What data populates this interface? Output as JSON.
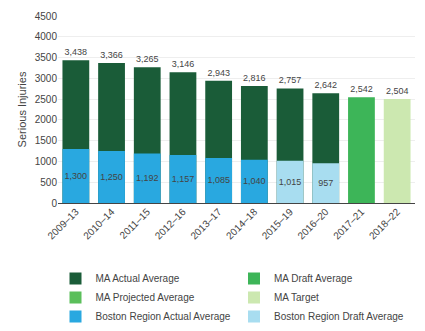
{
  "chart_data": {
    "type": "bar",
    "categories": [
      "2009–13",
      "2010–14",
      "2011–15",
      "2012–16",
      "2013–17",
      "2014–18",
      "2015–19",
      "2016–20",
      "2017–21",
      "2018–22"
    ],
    "series": [
      {
        "name": "MA Actual Average",
        "color": "#1a5c38",
        "values": [
          3438,
          3366,
          3265,
          3146,
          2943,
          2816,
          2757,
          2642,
          null,
          null
        ],
        "value_labels": [
          "3,438",
          "3,366",
          "3,265",
          "3,146",
          "2,943",
          "2,816",
          "2,757",
          "2,642",
          null,
          null
        ]
      },
      {
        "name": "MA Draft Average",
        "color": "#3db558",
        "values": [
          null,
          null,
          null,
          null,
          null,
          null,
          null,
          null,
          2542,
          null
        ],
        "value_labels": [
          null,
          null,
          null,
          null,
          null,
          null,
          null,
          null,
          "2,542",
          null
        ]
      },
      {
        "name": "MA Projected Average",
        "color": "#5bbf5b",
        "values": [
          null,
          null,
          null,
          null,
          null,
          null,
          null,
          null,
          null,
          null
        ]
      },
      {
        "name": "MA Target",
        "color": "#cce8b0",
        "values": [
          null,
          null,
          null,
          null,
          null,
          null,
          null,
          null,
          null,
          2504
        ],
        "value_labels": [
          null,
          null,
          null,
          null,
          null,
          null,
          null,
          null,
          null,
          "2,504"
        ]
      },
      {
        "name": "Boston Region Actual Average",
        "color": "#29a8e0",
        "values": [
          1300,
          1250,
          1192,
          1157,
          1085,
          1040,
          null,
          null,
          null,
          null
        ],
        "value_labels": [
          "1,300",
          "1,250",
          "1,192",
          "1,157",
          "1,085",
          "1,040",
          null,
          null,
          null,
          null
        ]
      },
      {
        "name": "Boston Region Draft Average",
        "color": "#a8ddf0",
        "values": [
          null,
          null,
          null,
          null,
          null,
          null,
          1015,
          957,
          null,
          null
        ],
        "value_labels": [
          null,
          null,
          null,
          null,
          null,
          null,
          "1,015",
          "957",
          null,
          null
        ]
      }
    ],
    "ylabel": "Serious Injuries",
    "ylim": [
      0,
      4500
    ],
    "yticks": [
      0,
      500,
      1000,
      1500,
      2000,
      2500,
      3000,
      3500,
      4000,
      4500
    ],
    "grid": true,
    "legend": "bottom",
    "data_labels": true
  }
}
